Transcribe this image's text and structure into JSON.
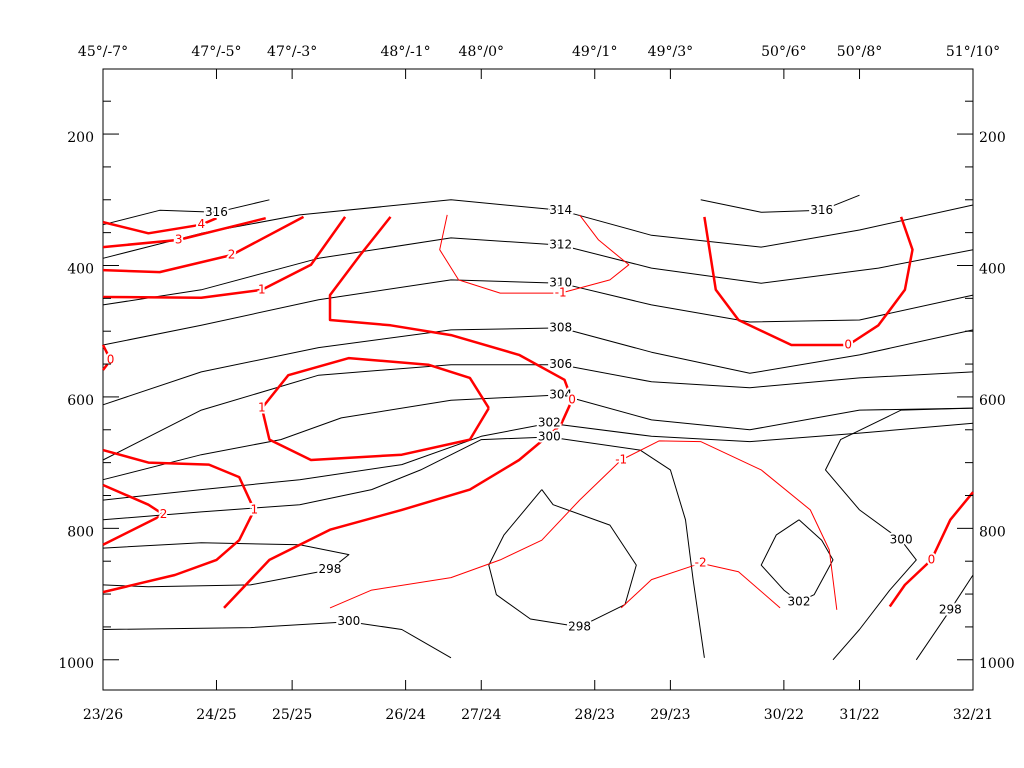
{
  "chart_data": {
    "type": "contour",
    "xlim": [
      0,
      23
    ],
    "ylim": [
      1046,
      101
    ],
    "xticks": [
      {
        "value": 0,
        "label": "23/26"
      },
      {
        "value": 3,
        "label": "24/25"
      },
      {
        "value": 5,
        "label": "25/25"
      },
      {
        "value": 8,
        "label": "26/24"
      },
      {
        "value": 10,
        "label": "27/24"
      },
      {
        "value": 13,
        "label": "28/23"
      },
      {
        "value": 15,
        "label": "29/23"
      },
      {
        "value": 18,
        "label": "30/22"
      },
      {
        "value": 20,
        "label": "31/22"
      },
      {
        "value": 23,
        "label": "32/21"
      }
    ],
    "x2ticks": [
      {
        "value": 0,
        "label": "45°/-7°"
      },
      {
        "value": 3,
        "label": "47°/-5°"
      },
      {
        "value": 5,
        "label": "47°/-3°"
      },
      {
        "value": 8,
        "label": "48°/-1°"
      },
      {
        "value": 10,
        "label": "48°/0°"
      },
      {
        "value": 13,
        "label": "49°/1°"
      },
      {
        "value": 15,
        "label": "49°/3°"
      },
      {
        "value": 18,
        "label": "50°/6°"
      },
      {
        "value": 20,
        "label": "50°/8°"
      },
      {
        "value": 23,
        "label": "51°/10°"
      }
    ],
    "yticks": [
      200,
      400,
      600,
      800,
      1000
    ],
    "yminorticks": [
      150,
      250,
      300,
      350,
      450,
      500,
      550,
      650,
      700,
      750,
      850,
      900,
      950
    ],
    "contours": [
      {
        "level": 316,
        "color": "#000000",
        "bold": false,
        "x": [
          0,
          1.5,
          3.0,
          4.4
        ],
        "y": [
          338,
          316,
          319,
          300
        ]
      },
      {
        "level": 316,
        "color": "#000000",
        "bold": false,
        "x": [
          15.8,
          17.4,
          19.0,
          20.0
        ],
        "y": [
          300,
          319,
          316,
          293
        ]
      },
      {
        "level": 314,
        "color": "#000000",
        "bold": false,
        "x": [
          0,
          2.6,
          5.2,
          9.2,
          12.1,
          14.5,
          17.4,
          20.0,
          23
        ],
        "y": [
          389,
          351,
          323,
          300,
          316,
          354,
          372,
          346,
          308
        ]
      },
      {
        "level": 312,
        "color": "#000000",
        "bold": false,
        "x": [
          0,
          2.6,
          5.7,
          9.2,
          12.1,
          14.5,
          17.4,
          20.5,
          23
        ],
        "y": [
          460,
          437,
          389,
          358,
          369,
          404,
          427,
          404,
          376
        ]
      },
      {
        "level": 310,
        "color": "#000000",
        "bold": false,
        "x": [
          0,
          2.6,
          5.7,
          9.2,
          12.1,
          14.5,
          17.1,
          20.0,
          23
        ],
        "y": [
          521,
          491,
          452,
          422,
          427,
          460,
          486,
          483,
          445
        ]
      },
      {
        "level": 308,
        "color": "#000000",
        "bold": false,
        "x": [
          0,
          2.6,
          5.7,
          9.2,
          12.1,
          14.5,
          17.1,
          20.0,
          23
        ],
        "y": [
          612,
          562,
          525,
          498,
          495,
          532,
          564,
          536,
          498
        ]
      },
      {
        "level": 306,
        "color": "#000000",
        "bold": false,
        "x": [
          0,
          2.6,
          5.7,
          9.2,
          12.1,
          14.5,
          17.1,
          20.0,
          23
        ],
        "y": [
          696,
          620,
          567,
          551,
          551,
          577,
          586,
          571,
          562
        ]
      },
      {
        "level": 304,
        "color": "#000000",
        "bold": false,
        "x": [
          0,
          2.6,
          4.7,
          6.3,
          9.2,
          12.1,
          14.5,
          17.1,
          20.0,
          23
        ],
        "y": [
          726,
          688,
          665,
          632,
          605,
          597,
          635,
          650,
          620,
          617
        ]
      },
      {
        "level": 302,
        "color": "#000000",
        "bold": false,
        "x": [
          0,
          2.6,
          5.2,
          7.9,
          10.0,
          11.8,
          14.5,
          17.1,
          20.0,
          23
        ],
        "y": [
          757,
          741,
          726,
          703,
          660,
          640,
          660,
          668,
          655,
          640
        ]
      },
      {
        "level": 300,
        "color": "#000000",
        "bold": false,
        "x": [
          0,
          2.6,
          5.2,
          7.1,
          8.4,
          10.0,
          11.8,
          14.2,
          15.0,
          15.4,
          15.6,
          15.9
        ],
        "y": [
          787,
          775,
          764,
          741,
          711,
          665,
          661,
          681,
          711,
          787,
          878,
          997
        ]
      },
      {
        "level": 298,
        "color": "#000000",
        "bold": false,
        "x": [
          0,
          2.6,
          5.2,
          6.5,
          6.0,
          3.9,
          1.2,
          0
        ],
        "y": [
          830,
          822,
          825,
          840,
          863,
          886,
          889,
          886
        ]
      },
      {
        "level": 300,
        "color": "#000000",
        "bold": false,
        "x": [
          0,
          3.9,
          6.5,
          7.9,
          9.2
        ],
        "y": [
          954,
          951,
          942,
          954,
          997
        ]
      },
      {
        "level": 298,
        "color": "#000000",
        "bold": false,
        "x": [
          11.6,
          11.9,
          13.4,
          14.1,
          13.8,
          12.6,
          11.3,
          10.4,
          10.2,
          10.6,
          11.6
        ],
        "y": [
          741,
          764,
          795,
          856,
          916,
          950,
          938,
          901,
          856,
          810,
          741
        ]
      },
      {
        "level": 302,
        "color": "#000000",
        "bold": false,
        "x": [
          18.4,
          19.0,
          19.3,
          18.8,
          18.4,
          18.0,
          17.4,
          17.8,
          18.4
        ],
        "y": [
          787,
          818,
          848,
          901,
          912,
          894,
          856,
          810,
          787
        ]
      },
      {
        "level": 300,
        "color": "#000000",
        "bold": false,
        "x": [
          23,
          21.1,
          19.5,
          19.1,
          20.0,
          21.1,
          21.5,
          20.8,
          20.0,
          19.3
        ],
        "y": [
          617,
          620,
          665,
          711,
          772,
          818,
          848,
          894,
          954,
          1000
        ]
      },
      {
        "level": 298,
        "color": "#000000",
        "bold": false,
        "x": [
          23,
          22.4,
          21.5
        ],
        "y": [
          871,
          924,
          1000
        ]
      },
      {
        "level": 4,
        "color": "#ff0000",
        "bold": true,
        "x": [
          0,
          1.2,
          2.6,
          3.0
        ],
        "y": [
          334,
          351,
          338,
          328
        ]
      },
      {
        "level": 3,
        "color": "#ff0000",
        "bold": true,
        "x": [
          0,
          2.0,
          4.3
        ],
        "y": [
          372,
          361,
          328
        ]
      },
      {
        "level": 2,
        "color": "#ff0000",
        "bold": true,
        "x": [
          0,
          1.5,
          3.4,
          5.3
        ],
        "y": [
          407,
          410,
          384,
          326
        ]
      },
      {
        "level": 1,
        "color": "#ff0000",
        "bold": true,
        "x": [
          0,
          2.6,
          4.2,
          5.5,
          6.4
        ],
        "y": [
          448,
          449,
          437,
          399,
          326
        ]
      },
      {
        "level": 0,
        "color": "#ff0000",
        "bold": true,
        "x": [
          7.6,
          6.8,
          6.0,
          6.0,
          7.6,
          9.2,
          11.0,
          12.2,
          12.4,
          12.1,
          11.0,
          9.7,
          7.9,
          6.0,
          4.4,
          3.2
        ],
        "y": [
          326,
          384,
          445,
          483,
          491,
          506,
          536,
          574,
          605,
          643,
          696,
          741,
          772,
          802,
          848,
          921
        ]
      },
      {
        "level": 1,
        "color": "#ff0000",
        "bold": true,
        "x": [
          10.2,
          9.7,
          8.6,
          6.5,
          4.9,
          4.2,
          4.4,
          5.5,
          7.9,
          9.7,
          10.2
        ],
        "y": [
          617,
          571,
          551,
          541,
          567,
          617,
          665,
          696,
          688,
          665,
          617
        ]
      },
      {
        "level": 1,
        "color": "#ff0000",
        "bold": true,
        "x": [
          0,
          1.2,
          2.8,
          3.6,
          4.0,
          3.6,
          3.0,
          1.9,
          0
        ],
        "y": [
          681,
          700,
          703,
          722,
          772,
          818,
          848,
          871,
          897
        ]
      },
      {
        "level": 2,
        "color": "#ff0000",
        "bold": true,
        "x": [
          0,
          1.2,
          1.6,
          0
        ],
        "y": [
          734,
          764,
          779,
          825
        ]
      },
      {
        "level": 0,
        "color": "#ff0000",
        "bold": true,
        "x": [
          15.9,
          16.2,
          16.8,
          18.2,
          19.7,
          20.5,
          21.2,
          21.4,
          21.1
        ],
        "y": [
          326,
          437,
          483,
          521,
          521,
          491,
          437,
          376,
          326
        ]
      },
      {
        "level": 0,
        "color": "#ff0000",
        "bold": true,
        "x": [
          0,
          0.2,
          0
        ],
        "y": [
          521,
          544,
          559
        ]
      },
      {
        "level": 0,
        "color": "#ff0000",
        "bold": true,
        "x": [
          23,
          22.4,
          21.9,
          21.2,
          20.8
        ],
        "y": [
          745,
          787,
          848,
          886,
          919
        ]
      },
      {
        "level": -1,
        "color": "#ff0000",
        "bold": false,
        "x": [
          9.1,
          8.9,
          9.4,
          10.5,
          12.1,
          13.4,
          13.9,
          13.1,
          12.6
        ],
        "y": [
          323,
          376,
          422,
          442,
          442,
          422,
          399,
          361,
          323
        ]
      },
      {
        "level": -1,
        "color": "#ff0000",
        "bold": false,
        "x": [
          6.0,
          7.1,
          9.2,
          10.5,
          11.6,
          12.6,
          13.7,
          14.7,
          15.8,
          17.4,
          18.7,
          19.2,
          19.4
        ],
        "y": [
          921,
          894,
          875,
          848,
          818,
          757,
          696,
          667,
          668,
          711,
          772,
          833,
          924
        ]
      },
      {
        "level": -2,
        "color": "#ff0000",
        "bold": false,
        "x": [
          13.7,
          14.5,
          15.8,
          16.8,
          17.9
        ],
        "y": [
          921,
          878,
          853,
          866,
          921
        ]
      }
    ]
  }
}
